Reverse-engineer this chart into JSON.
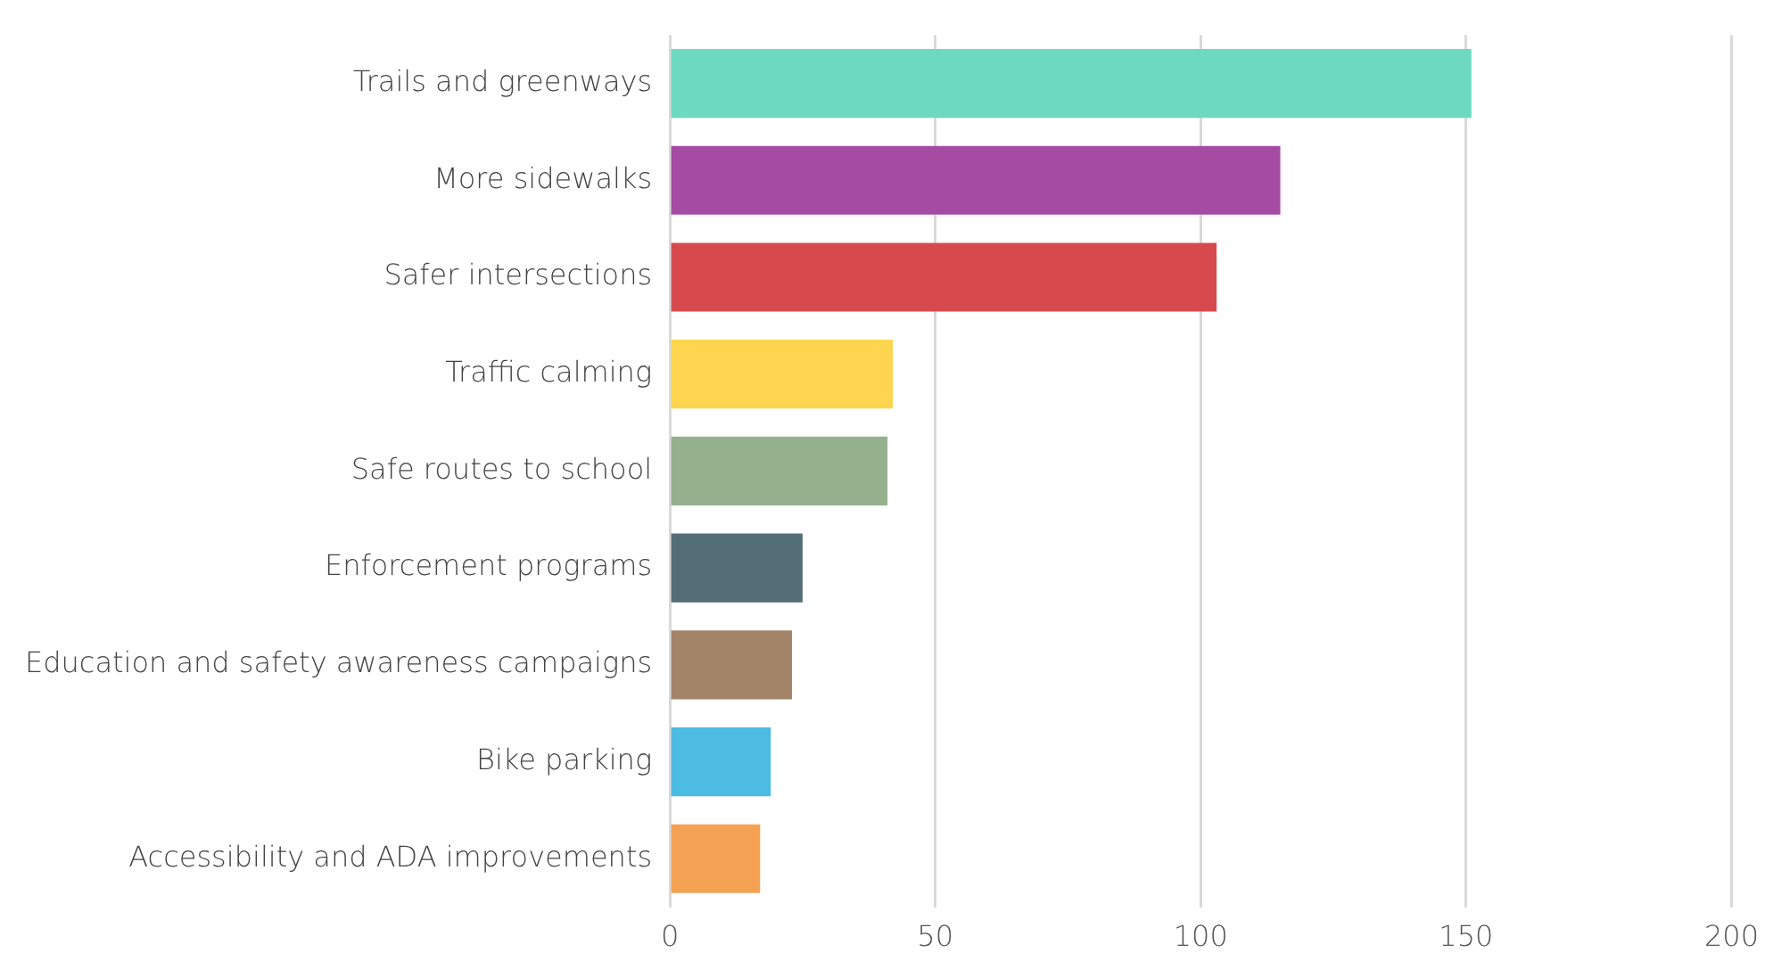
{
  "chart_data": {
    "type": "bar",
    "orientation": "horizontal",
    "categories": [
      "Trails and greenways",
      "More sidewalks",
      "Safer intersections",
      "Traffic calming",
      "Safe routes to school",
      "Enforcement programs",
      "Education and safety awareness campaigns",
      "Bike parking",
      "Accessibility and ADA improvements"
    ],
    "values": [
      151,
      115,
      103,
      42,
      41,
      25,
      23,
      19,
      17
    ],
    "colors": [
      "#6dd9c1",
      "#a54ba4",
      "#d64a4e",
      "#fed54f",
      "#94b08c",
      "#546e78",
      "#a38468",
      "#4cbce3",
      "#f5a153"
    ],
    "xlim": [
      0,
      200
    ],
    "xticks": [
      0,
      50,
      100,
      150,
      200
    ],
    "grid": "x",
    "legend": false
  }
}
